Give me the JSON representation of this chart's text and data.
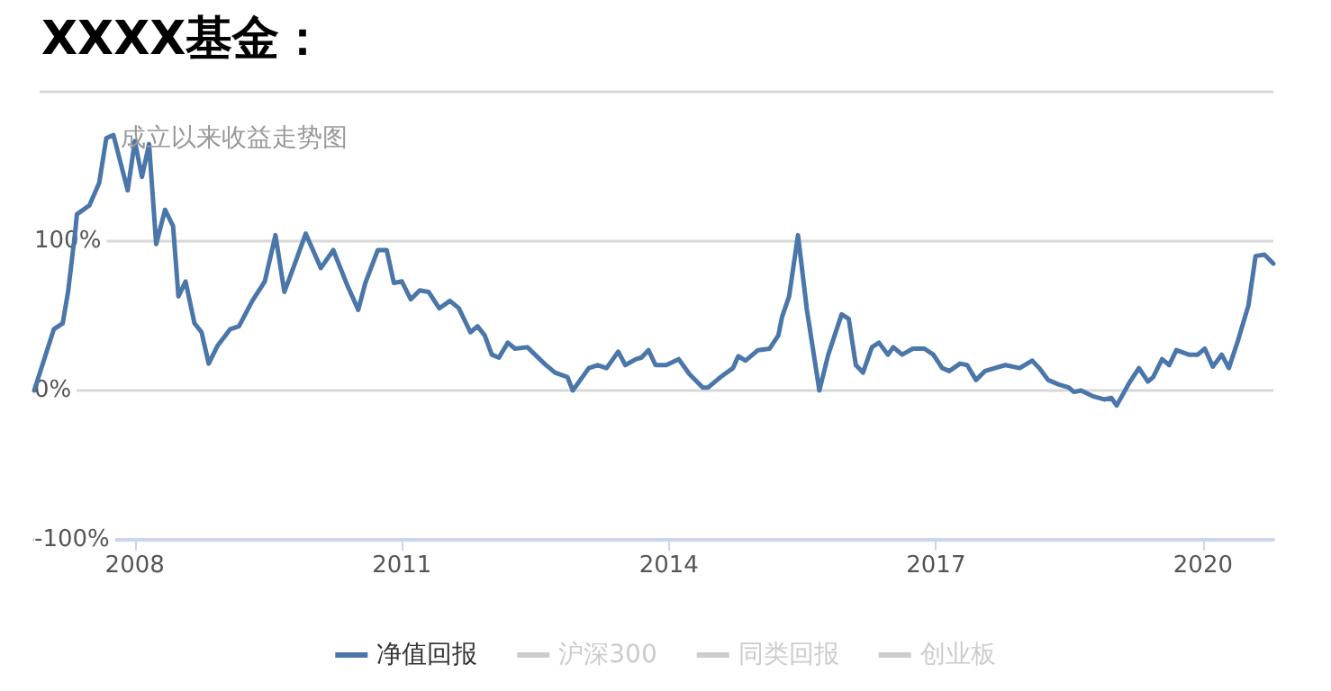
{
  "chart_data": {
    "type": "line",
    "title": "XXXX基金：",
    "subtitle": "成立以来收益走势图",
    "xlim": [
      2006.87,
      2020.79
    ],
    "xticks": [
      2008,
      2011,
      2014,
      2017,
      2020
    ],
    "ylim": [
      -100,
      200
    ],
    "yticks": [
      {
        "value": -100,
        "label": "-100%"
      },
      {
        "value": 0,
        "label": "0%"
      },
      {
        "value": 100,
        "label": "100%"
      },
      {
        "value": 200,
        "label": null
      }
    ],
    "grid": "y",
    "legend": "bottom",
    "marker": "none",
    "line_style": "solid",
    "x": [
      2006.87,
      2007.09,
      2007.19,
      2007.25,
      2007.33,
      2007.35,
      2007.49,
      2007.6,
      2007.68,
      2007.76,
      2007.92,
      2008.0,
      2008.08,
      2008.16,
      2008.24,
      2008.34,
      2008.43,
      2008.49,
      2008.57,
      2008.67,
      2008.75,
      2008.83,
      2008.93,
      2009.07,
      2009.17,
      2009.32,
      2009.46,
      2009.58,
      2009.68,
      2009.78,
      2009.92,
      2010.09,
      2010.23,
      2010.39,
      2010.51,
      2010.59,
      2010.73,
      2010.83,
      2010.91,
      2011.0,
      2011.1,
      2011.2,
      2011.3,
      2011.42,
      2011.54,
      2011.64,
      2011.77,
      2011.85,
      2011.93,
      2012.01,
      2012.09,
      2012.19,
      2012.27,
      2012.41,
      2012.6,
      2012.72,
      2012.86,
      2012.92,
      2013.1,
      2013.2,
      2013.3,
      2013.43,
      2013.51,
      2013.63,
      2013.69,
      2013.77,
      2013.85,
      2013.97,
      2014.11,
      2014.23,
      2014.38,
      2014.44,
      2014.58,
      2014.72,
      2014.78,
      2014.86,
      2015.0,
      2015.13,
      2015.23,
      2015.27,
      2015.35,
      2015.45,
      2015.55,
      2015.69,
      2015.79,
      2015.94,
      2016.02,
      2016.1,
      2016.18,
      2016.28,
      2016.36,
      2016.46,
      2016.52,
      2016.62,
      2016.74,
      2016.87,
      2016.97,
      2017.07,
      2017.15,
      2017.27,
      2017.35,
      2017.45,
      2017.55,
      2017.66,
      2017.78,
      2017.94,
      2018.08,
      2018.16,
      2018.26,
      2018.38,
      2018.49,
      2018.55,
      2018.63,
      2018.77,
      2018.89,
      2018.97,
      2019.03,
      2019.17,
      2019.28,
      2019.38,
      2019.44,
      2019.54,
      2019.62,
      2019.7,
      2019.84,
      2019.94,
      2020.02,
      2020.11,
      2020.21,
      2020.29,
      2020.39,
      2020.51,
      2020.59,
      2020.69,
      2020.79
    ],
    "series": [
      {
        "name": "净值回报",
        "color": "#4a76aa",
        "values": [
          0,
          41,
          45,
          66,
          106,
          118,
          124,
          139,
          169,
          171,
          134,
          167,
          143,
          165,
          98,
          121,
          110,
          63,
          73,
          45,
          39,
          18,
          30,
          41,
          43,
          60,
          73,
          104,
          66,
          82,
          105,
          82,
          94,
          70,
          54,
          72,
          94,
          94,
          72,
          73,
          61,
          67,
          66,
          55,
          60,
          55,
          39,
          43,
          37,
          24,
          22,
          32,
          28,
          29,
          18,
          12,
          9,
          0,
          15,
          17,
          15,
          26,
          17,
          21,
          22,
          27,
          17,
          17,
          21,
          11,
          2,
          2,
          9,
          15,
          23,
          20,
          27,
          28,
          37,
          49,
          63,
          104,
          54,
          0,
          24,
          51,
          48,
          17,
          12,
          29,
          32,
          24,
          29,
          24,
          28,
          28,
          24,
          15,
          13,
          18,
          17,
          7,
          13,
          15,
          17,
          15,
          20,
          15,
          7,
          4,
          2,
          -1,
          0,
          -4,
          -6,
          -5,
          -10,
          5,
          15,
          6,
          9,
          21,
          17,
          27,
          24,
          24,
          28,
          16,
          24,
          15,
          33,
          57,
          90,
          91,
          85
        ]
      },
      {
        "name": "沪深300",
        "color": "#cccccc",
        "values": [
          null,
          null,
          null,
          null,
          null,
          null,
          null,
          null,
          null,
          null,
          null,
          null,
          null,
          null,
          null,
          null,
          null,
          null,
          null,
          null,
          null,
          null,
          null,
          null,
          null,
          null,
          null,
          null,
          null,
          null,
          null,
          null,
          null,
          null,
          null,
          null,
          null,
          null,
          null,
          null,
          null,
          null,
          null,
          null,
          null,
          null,
          null,
          null,
          null,
          null,
          null,
          null,
          null,
          null,
          null,
          null,
          null,
          null,
          null,
          null,
          null,
          null,
          null,
          null,
          null,
          null,
          null,
          null,
          null,
          null,
          null,
          null,
          null,
          null,
          null,
          null,
          null,
          null,
          null,
          null,
          null,
          null,
          null,
          null,
          null,
          null,
          null,
          null,
          null,
          null,
          null,
          null,
          null,
          null,
          null,
          null,
          null,
          null,
          null,
          null,
          null,
          null,
          null,
          null,
          null,
          null,
          null,
          null,
          null,
          null,
          null,
          null,
          null,
          null,
          null,
          null,
          null,
          null,
          null,
          null,
          null,
          null,
          null,
          null,
          null,
          null,
          null,
          null,
          null,
          null,
          null,
          null,
          null,
          null,
          null
        ]
      },
      {
        "name": "同类回报",
        "color": "#cccccc",
        "values": [
          null,
          null,
          null,
          null,
          null,
          null,
          null,
          null,
          null,
          null,
          null,
          null,
          null,
          null,
          null,
          null,
          null,
          null,
          null,
          null,
          null,
          null,
          null,
          null,
          null,
          null,
          null,
          null,
          null,
          null,
          null,
          null,
          null,
          null,
          null,
          null,
          null,
          null,
          null,
          null,
          null,
          null,
          null,
          null,
          null,
          null,
          null,
          null,
          null,
          null,
          null,
          null,
          null,
          null,
          null,
          null,
          null,
          null,
          null,
          null,
          null,
          null,
          null,
          null,
          null,
          null,
          null,
          null,
          null,
          null,
          null,
          null,
          null,
          null,
          null,
          null,
          null,
          null,
          null,
          null,
          null,
          null,
          null,
          null,
          null,
          null,
          null,
          null,
          null,
          null,
          null,
          null,
          null,
          null,
          null,
          null,
          null,
          null,
          null,
          null,
          null,
          null,
          null,
          null,
          null,
          null,
          null,
          null,
          null,
          null,
          null,
          null,
          null,
          null,
          null,
          null,
          null,
          null,
          null,
          null,
          null,
          null,
          null,
          null,
          null,
          null,
          null,
          null,
          null,
          null,
          null,
          null,
          null,
          null,
          null
        ]
      },
      {
        "name": "创业板",
        "color": "#cccccc",
        "values": [
          null,
          null,
          null,
          null,
          null,
          null,
          null,
          null,
          null,
          null,
          null,
          null,
          null,
          null,
          null,
          null,
          null,
          null,
          null,
          null,
          null,
          null,
          null,
          null,
          null,
          null,
          null,
          null,
          null,
          null,
          null,
          null,
          null,
          null,
          null,
          null,
          null,
          null,
          null,
          null,
          null,
          null,
          null,
          null,
          null,
          null,
          null,
          null,
          null,
          null,
          null,
          null,
          null,
          null,
          null,
          null,
          null,
          null,
          null,
          null,
          null,
          null,
          null,
          null,
          null,
          null,
          null,
          null,
          null,
          null,
          null,
          null,
          null,
          null,
          null,
          null,
          null,
          null,
          null,
          null,
          null,
          null,
          null,
          null,
          null,
          null,
          null,
          null,
          null,
          null,
          null,
          null,
          null,
          null,
          null,
          null,
          null,
          null,
          null,
          null,
          null,
          null,
          null,
          null,
          null,
          null,
          null,
          null,
          null,
          null,
          null,
          null,
          null,
          null,
          null,
          null,
          null,
          null,
          null,
          null,
          null,
          null,
          null,
          null,
          null,
          null,
          null,
          null,
          null,
          null,
          null,
          null,
          null,
          null,
          null
        ]
      }
    ]
  }
}
